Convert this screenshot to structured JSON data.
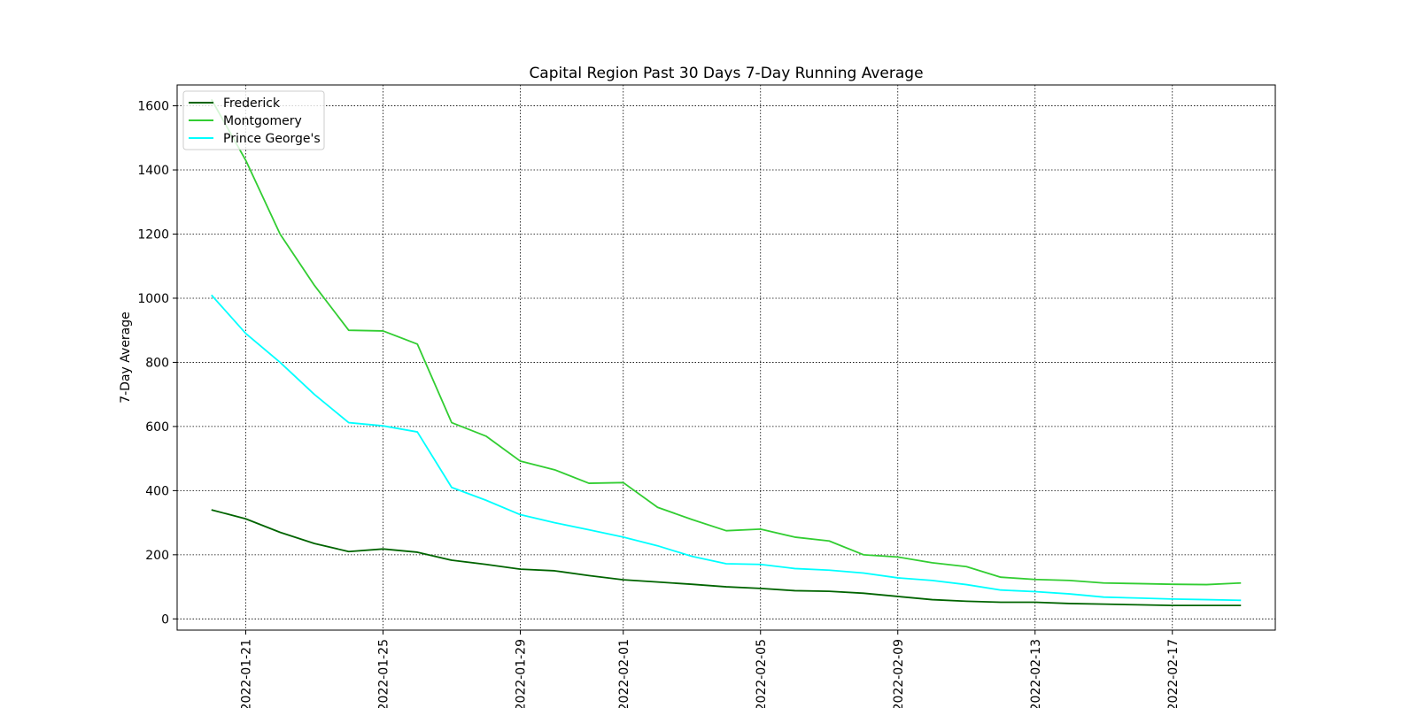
{
  "chart_data": {
    "type": "line",
    "title": "Capital Region Past 30 Days 7-Day Running Average",
    "xlabel": "",
    "ylabel": "7-Day Average",
    "x": [
      "2022-01-20",
      "2022-01-21",
      "2022-01-22",
      "2022-01-23",
      "2022-01-24",
      "2022-01-25",
      "2022-01-26",
      "2022-01-27",
      "2022-01-28",
      "2022-01-29",
      "2022-01-30",
      "2022-01-31",
      "2022-02-01",
      "2022-02-02",
      "2022-02-03",
      "2022-02-04",
      "2022-02-05",
      "2022-02-06",
      "2022-02-07",
      "2022-02-08",
      "2022-02-09",
      "2022-02-10",
      "2022-02-11",
      "2022-02-12",
      "2022-02-13",
      "2022-02-14",
      "2022-02-15",
      "2022-02-16",
      "2022-02-17",
      "2022-02-18",
      "2022-02-19"
    ],
    "xticks": [
      "2022-01-21",
      "2022-01-25",
      "2022-01-29",
      "2022-02-01",
      "2022-02-05",
      "2022-02-09",
      "2022-02-13",
      "2022-02-17"
    ],
    "yticks": [
      0,
      200,
      400,
      600,
      800,
      1000,
      1200,
      1400,
      1600
    ],
    "xlim": [
      "2022-01-19T00:00",
      "2022-02-20T00:00"
    ],
    "ylim": [
      -35,
      1665
    ],
    "grid": true,
    "legend_position": "top-left",
    "series": [
      {
        "name": "Frederick",
        "color": "#006400",
        "values": [
          340,
          312,
          270,
          235,
          210,
          218,
          208,
          183,
          170,
          155,
          150,
          135,
          122,
          115,
          108,
          100,
          95,
          88,
          86,
          80,
          70,
          60,
          55,
          52,
          52,
          48,
          46,
          44,
          42,
          42,
          42
        ]
      },
      {
        "name": "Montgomery",
        "color": "#32cd32",
        "values": [
          1620,
          1430,
          1200,
          1040,
          900,
          898,
          857,
          612,
          570,
          492,
          465,
          423,
          425,
          348,
          310,
          275,
          280,
          255,
          243,
          200,
          193,
          175,
          163,
          130,
          123,
          120,
          112,
          110,
          108,
          107,
          112
        ]
      },
      {
        "name": "Prince George's",
        "color": "#00ffff",
        "values": [
          1010,
          890,
          800,
          700,
          612,
          602,
          583,
          410,
          370,
          325,
          300,
          278,
          255,
          228,
          195,
          172,
          170,
          157,
          152,
          143,
          128,
          120,
          107,
          90,
          85,
          78,
          68,
          65,
          62,
          60,
          58
        ]
      }
    ]
  }
}
